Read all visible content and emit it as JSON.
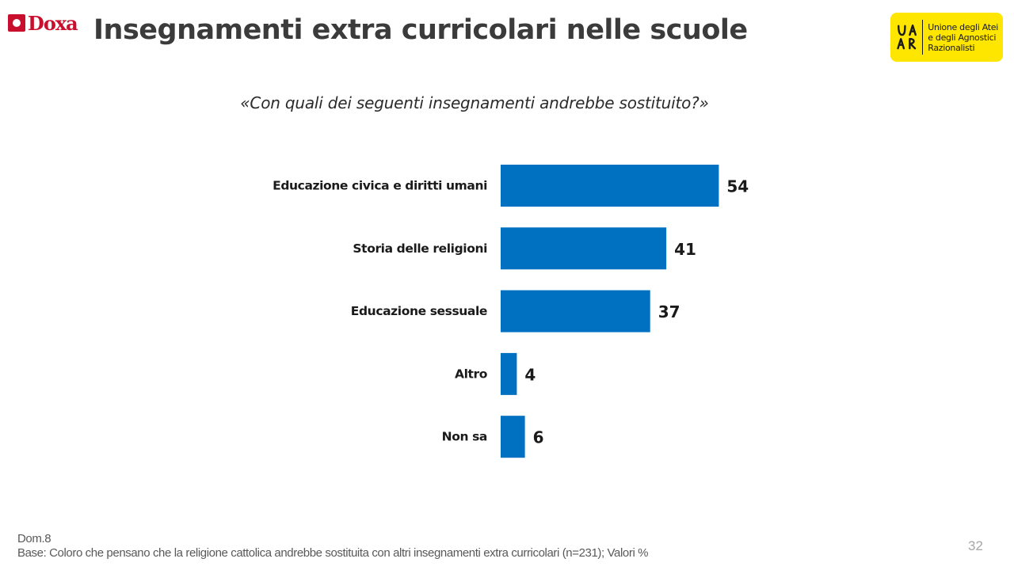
{
  "header": {
    "doxa_logo_text": "Doxa",
    "title": "Insegnamenti extra curricolari nelle scuole",
    "uaar_logo": {
      "letters": "UAAR",
      "lines": [
        "Unione degli Atei",
        "e degli Agnostici",
        "Razionalisti"
      ],
      "background": "#ffe600"
    }
  },
  "question": "«Con quali dei seguenti insegnamenti andrebbe sostituito?»",
  "chart_data": {
    "type": "bar",
    "orientation": "horizontal",
    "categories": [
      "Educazione civica e diritti umani",
      "Storia delle religioni",
      "Educazione sessuale",
      "Altro",
      "Non sa"
    ],
    "values": [
      54,
      41,
      37,
      4,
      6
    ],
    "bar_color": "#0070c0",
    "data_labels": true,
    "grid": false,
    "legend": "none"
  },
  "footer": {
    "note_line1": "Dom.8",
    "note_line2": "Base: Coloro che pensano che la religione cattolica andrebbe sostituita con altri insegnamenti extra curricolari (n=231); Valori %",
    "page_number": "32"
  }
}
